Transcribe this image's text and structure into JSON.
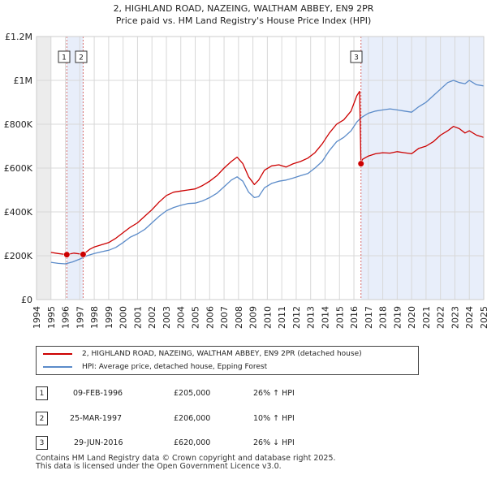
{
  "title_line1": "2, HIGHLAND ROAD, NAZEING, WALTHAM ABBEY, EN9 2PR",
  "title_line2": "Price paid vs. HM Land Registry's House Price Index (HPI)",
  "legend": {
    "property_label": "2, HIGHLAND ROAD, NAZEING, WALTHAM ABBEY, EN9 2PR (detached house)",
    "hpi_label": "HPI: Average price, detached house, Epping Forest"
  },
  "colors": {
    "property": "#cc0000",
    "hpi": "#5b8bc9",
    "shade": "#e8eefa",
    "grid": "#d8d8d8",
    "marker_line": "#d66b6b"
  },
  "transactions": [
    {
      "num": "1",
      "date": "09-FEB-1996",
      "price": "£205,000",
      "hpi_change": "26% ↑ HPI"
    },
    {
      "num": "2",
      "date": "25-MAR-1997",
      "price": "£206,000",
      "hpi_change": "10% ↑ HPI"
    },
    {
      "num": "3",
      "date": "29-JUN-2016",
      "price": "£620,000",
      "hpi_change": "26% ↓ HPI"
    }
  ],
  "footer": {
    "line1": "Contains HM Land Registry data © Crown copyright and database right 2025.",
    "line2": "This data is licensed under the Open Government Licence v3.0."
  },
  "chart_data": {
    "type": "line",
    "title": "Price paid vs. HM Land Registry's House Price Index (HPI)",
    "xlabel": "",
    "ylabel": "",
    "xlim": [
      1994,
      2025
    ],
    "ylim": [
      0,
      1200000
    ],
    "y_ticks": [
      {
        "value": 0,
        "label": "£0"
      },
      {
        "value": 200000,
        "label": "£200K"
      },
      {
        "value": 400000,
        "label": "£400K"
      },
      {
        "value": 600000,
        "label": "£600K"
      },
      {
        "value": 800000,
        "label": "£800K"
      },
      {
        "value": 1000000,
        "label": "£1M"
      },
      {
        "value": 1200000,
        "label": "£1.2M"
      }
    ],
    "x_ticks": [
      "1994",
      "1995",
      "1996",
      "1997",
      "1998",
      "1999",
      "2000",
      "2001",
      "2002",
      "2003",
      "2004",
      "2005",
      "2006",
      "2007",
      "2008",
      "2009",
      "2010",
      "2011",
      "2012",
      "2013",
      "2014",
      "2015",
      "2016",
      "2017",
      "2018",
      "2019",
      "2020",
      "2021",
      "2022",
      "2023",
      "2024",
      "2025"
    ],
    "data_start": 1995.0,
    "shaded_regions": [
      {
        "from": 1996.1,
        "to": 1997.23
      },
      {
        "from": 2016.5,
        "to": 2025.0
      }
    ],
    "markers": [
      {
        "label": "1",
        "x": 1996.1,
        "y": 205000
      },
      {
        "label": "2",
        "x": 1997.23,
        "y": 206000
      },
      {
        "label": "3",
        "x": 2016.49,
        "y": 620000
      }
    ],
    "series": [
      {
        "name": "2, HIGHLAND ROAD, NAZEING, WALTHAM ABBEY, EN9 2PR (detached house)",
        "color": "#cc0000",
        "x": [
          1995.0,
          1995.5,
          1996.1,
          1996.6,
          1997.23,
          1997.7,
          1998.0,
          1998.5,
          1999.0,
          1999.5,
          2000.0,
          2000.5,
          2001.0,
          2001.5,
          2002.0,
          2002.5,
          2003.0,
          2003.5,
          2004.0,
          2004.5,
          2005.0,
          2005.5,
          2006.0,
          2006.5,
          2007.0,
          2007.5,
          2007.9,
          2008.3,
          2008.7,
          2009.1,
          2009.4,
          2009.8,
          2010.3,
          2010.8,
          2011.3,
          2011.8,
          2012.3,
          2012.8,
          2013.3,
          2013.8,
          2014.3,
          2014.8,
          2015.3,
          2015.8,
          2016.2,
          2016.4,
          2016.49,
          2016.6,
          2017.0,
          2017.5,
          2018.0,
          2018.5,
          2019.0,
          2019.5,
          2020.0,
          2020.5,
          2021.0,
          2021.5,
          2022.0,
          2022.5,
          2022.9,
          2023.3,
          2023.7,
          2024.0,
          2024.5,
          2025.0
        ],
        "y": [
          215000,
          210000,
          205000,
          212000,
          206000,
          230000,
          240000,
          250000,
          260000,
          280000,
          305000,
          330000,
          350000,
          380000,
          410000,
          445000,
          475000,
          490000,
          495000,
          500000,
          505000,
          520000,
          540000,
          565000,
          600000,
          630000,
          650000,
          620000,
          560000,
          525000,
          545000,
          590000,
          610000,
          615000,
          605000,
          620000,
          630000,
          645000,
          670000,
          710000,
          760000,
          800000,
          820000,
          860000,
          930000,
          950000,
          620000,
          640000,
          655000,
          665000,
          670000,
          668000,
          675000,
          670000,
          665000,
          690000,
          700000,
          720000,
          750000,
          770000,
          790000,
          780000,
          760000,
          770000,
          750000,
          740000
        ]
      },
      {
        "name": "HPI: Average price, detached house, Epping Forest",
        "color": "#5b8bc9",
        "x": [
          1995.0,
          1995.5,
          1996.0,
          1996.5,
          1997.0,
          1997.5,
          1998.0,
          1998.5,
          1999.0,
          1999.5,
          2000.0,
          2000.5,
          2001.0,
          2001.5,
          2002.0,
          2002.5,
          2003.0,
          2003.5,
          2004.0,
          2004.5,
          2005.0,
          2005.5,
          2006.0,
          2006.5,
          2007.0,
          2007.5,
          2007.9,
          2008.3,
          2008.7,
          2009.1,
          2009.4,
          2009.8,
          2010.3,
          2010.8,
          2011.3,
          2011.8,
          2012.3,
          2012.8,
          2013.3,
          2013.8,
          2014.3,
          2014.8,
          2015.3,
          2015.8,
          2016.2,
          2016.5,
          2017.0,
          2017.5,
          2018.0,
          2018.5,
          2019.0,
          2019.5,
          2020.0,
          2020.5,
          2021.0,
          2021.5,
          2022.0,
          2022.5,
          2022.9,
          2023.3,
          2023.7,
          2024.0,
          2024.5,
          2025.0
        ],
        "y": [
          170000,
          165000,
          163000,
          172000,
          185000,
          200000,
          210000,
          218000,
          225000,
          238000,
          260000,
          285000,
          300000,
          320000,
          350000,
          380000,
          405000,
          420000,
          430000,
          438000,
          440000,
          450000,
          465000,
          485000,
          515000,
          545000,
          560000,
          540000,
          490000,
          465000,
          470000,
          510000,
          530000,
          540000,
          545000,
          555000,
          565000,
          575000,
          600000,
          630000,
          680000,
          720000,
          740000,
          770000,
          810000,
          830000,
          850000,
          860000,
          865000,
          870000,
          865000,
          860000,
          855000,
          880000,
          900000,
          930000,
          960000,
          990000,
          1000000,
          990000,
          985000,
          1000000,
          980000,
          975000
        ]
      }
    ]
  }
}
